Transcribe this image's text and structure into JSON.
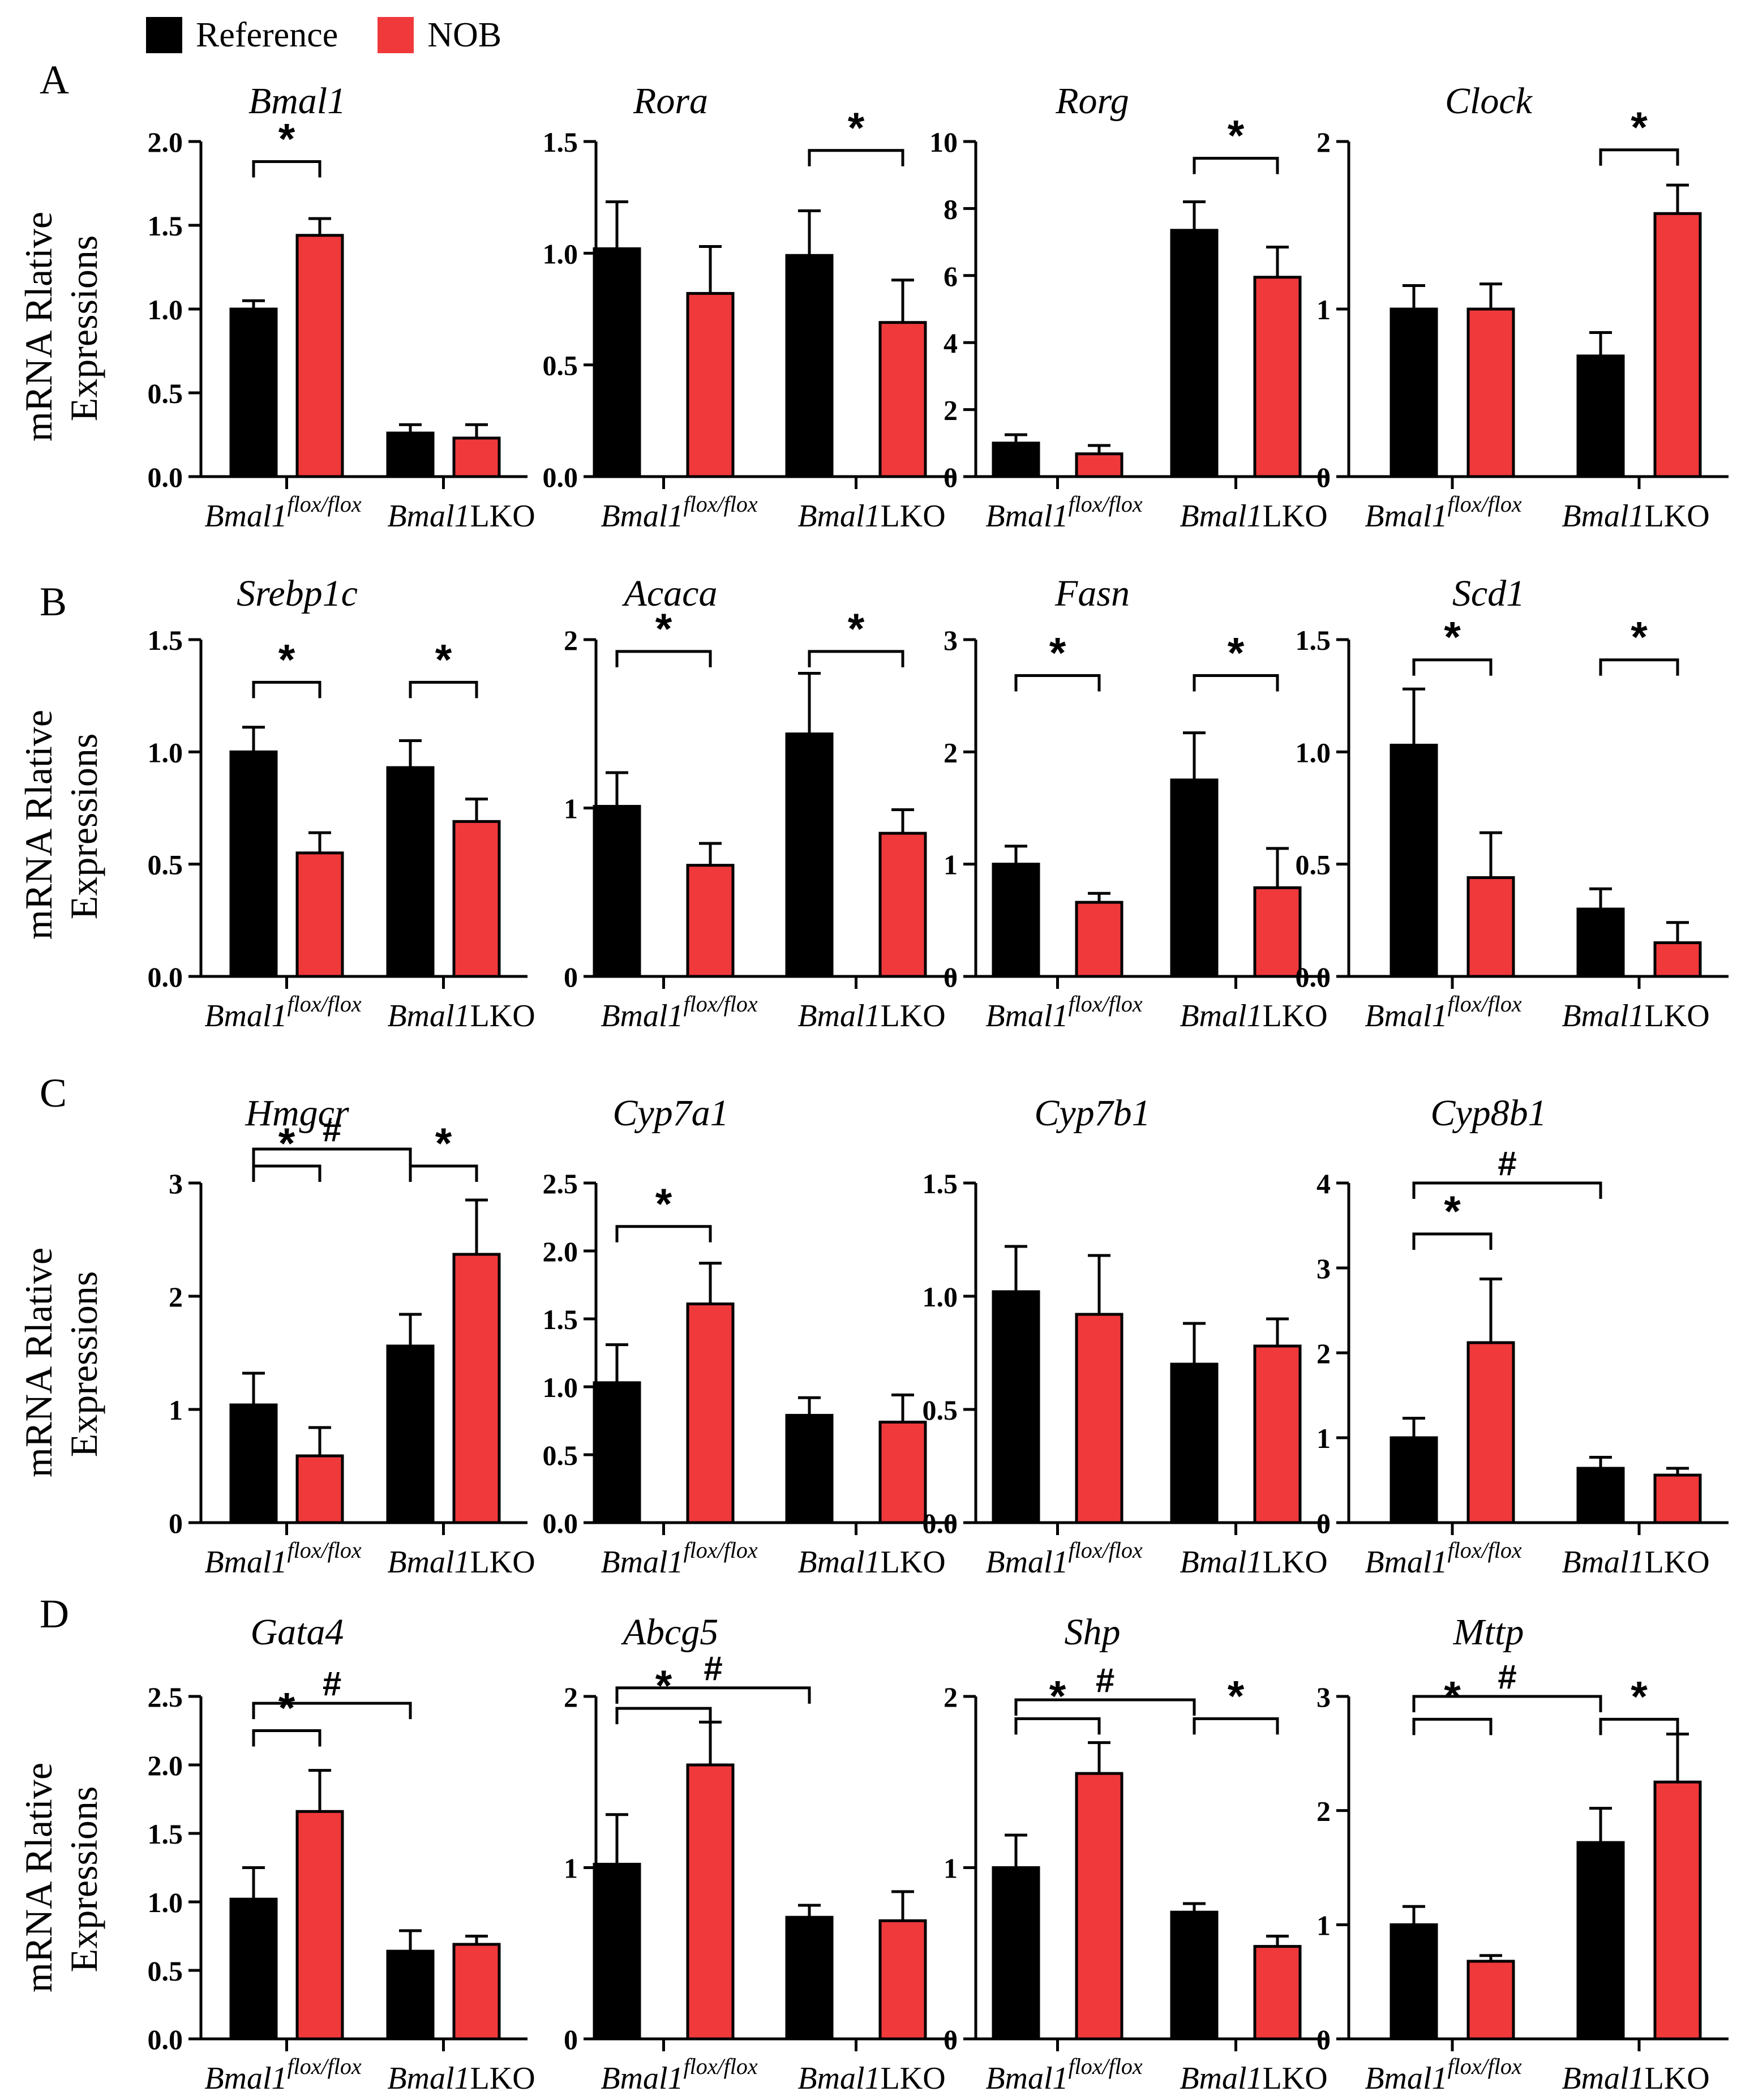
{
  "legend": {
    "items": [
      {
        "label": "Reference",
        "color": "#000000"
      },
      {
        "label": "NOB",
        "color": "#F0393B"
      }
    ]
  },
  "y_axis_label": {
    "line1": "mRNA Rlative",
    "line2": "Expressions"
  },
  "groups": {
    "g1_base": "Bmal1",
    "g1_sup": "flox/flox",
    "g2_base": "Bmal1",
    "g2_rest": "LKO"
  },
  "colors": {
    "reference": "#000000",
    "nob": "#F0393B"
  },
  "panels": [
    {
      "letter": "A",
      "charts": [
        {
          "type": "bar",
          "title": "Bmal1",
          "ylim": [
            0,
            2.0
          ],
          "ticks": [
            "0.0",
            "0.5",
            "1.0",
            "1.5",
            "2.0"
          ],
          "tickvals": [
            0,
            0.5,
            1.0,
            1.5,
            2.0
          ],
          "series": [
            {
              "name": "Reference",
              "values": [
                1.0,
                0.26
              ],
              "errors": [
                0.05,
                0.05
              ]
            },
            {
              "name": "NOB",
              "values": [
                1.44,
                0.23
              ],
              "errors": [
                0.1,
                0.08
              ]
            }
          ],
          "annotations": [
            {
              "type": "bracket",
              "label": "*",
              "from": "g1r",
              "to": "g1n",
              "level": 1.88
            }
          ]
        },
        {
          "type": "bar",
          "title": "Rora",
          "ylim": [
            0,
            1.5
          ],
          "ticks": [
            "0.0",
            "0.5",
            "1.0",
            "1.5"
          ],
          "tickvals": [
            0,
            0.5,
            1.0,
            1.5
          ],
          "series": [
            {
              "name": "Reference",
              "values": [
                1.02,
                0.99
              ],
              "errors": [
                0.21,
                0.2
              ]
            },
            {
              "name": "NOB",
              "values": [
                0.82,
                0.69
              ],
              "errors": [
                0.21,
                0.19
              ]
            }
          ],
          "annotations": [
            {
              "type": "bracket",
              "label": "*",
              "from": "g2r",
              "to": "g2n",
              "level": 1.46
            }
          ]
        },
        {
          "type": "bar",
          "title": "Rorg",
          "ylim": [
            0,
            10
          ],
          "ticks": [
            "0",
            "2",
            "4",
            "6",
            "8",
            "10"
          ],
          "tickvals": [
            0,
            2,
            4,
            6,
            8,
            10
          ],
          "series": [
            {
              "name": "Reference",
              "values": [
                1.0,
                7.35
              ],
              "errors": [
                0.25,
                0.85
              ]
            },
            {
              "name": "NOB",
              "values": [
                0.68,
                5.95
              ],
              "errors": [
                0.25,
                0.9
              ]
            }
          ],
          "annotations": [
            {
              "type": "bracket",
              "label": "*",
              "from": "g2r",
              "to": "g2n",
              "level": 9.5
            }
          ]
        },
        {
          "type": "bar",
          "title": "Clock",
          "ylim": [
            0,
            2
          ],
          "ticks": [
            "0",
            "1",
            "2"
          ],
          "tickvals": [
            0,
            1,
            2
          ],
          "series": [
            {
              "name": "Reference",
              "values": [
                1.0,
                0.72
              ],
              "errors": [
                0.14,
                0.14
              ]
            },
            {
              "name": "NOB",
              "values": [
                1.0,
                1.57
              ],
              "errors": [
                0.15,
                0.17
              ]
            }
          ],
          "annotations": [
            {
              "type": "bracket",
              "label": "*",
              "from": "g2r",
              "to": "g2n",
              "level": 1.95
            }
          ]
        }
      ]
    },
    {
      "letter": "B",
      "charts": [
        {
          "type": "bar",
          "title": "Srebp1c",
          "ylim": [
            0,
            1.5
          ],
          "ticks": [
            "0.0",
            "0.5",
            "1.0",
            "1.5"
          ],
          "tickvals": [
            0,
            0.5,
            1.0,
            1.5
          ],
          "series": [
            {
              "name": "Reference",
              "values": [
                1.0,
                0.93
              ],
              "errors": [
                0.11,
                0.12
              ]
            },
            {
              "name": "NOB",
              "values": [
                0.55,
                0.69
              ],
              "errors": [
                0.09,
                0.1
              ]
            }
          ],
          "annotations": [
            {
              "type": "bracket",
              "label": "*",
              "from": "g1r",
              "to": "g1n",
              "level": 1.31
            },
            {
              "type": "bracket",
              "label": "*",
              "from": "g2r",
              "to": "g2n",
              "level": 1.31
            }
          ]
        },
        {
          "type": "bar",
          "title": "Acaca",
          "ylim": [
            0,
            2
          ],
          "ticks": [
            "0",
            "1",
            "2"
          ],
          "tickvals": [
            0,
            1,
            2
          ],
          "series": [
            {
              "name": "Reference",
              "values": [
                1.01,
                1.44
              ],
              "errors": [
                0.2,
                0.36
              ]
            },
            {
              "name": "NOB",
              "values": [
                0.66,
                0.85
              ],
              "errors": [
                0.13,
                0.14
              ]
            }
          ],
          "annotations": [
            {
              "type": "bracket",
              "label": "*",
              "from": "g1r",
              "to": "g1n",
              "level": 1.93
            },
            {
              "type": "bracket",
              "label": "*",
              "from": "g2r",
              "to": "g2n",
              "level": 1.93
            }
          ]
        },
        {
          "type": "bar",
          "title": "Fasn",
          "ylim": [
            0,
            3
          ],
          "ticks": [
            "0",
            "1",
            "2",
            "3"
          ],
          "tickvals": [
            0,
            1,
            2,
            3
          ],
          "series": [
            {
              "name": "Reference",
              "values": [
                1.0,
                1.75
              ],
              "errors": [
                0.16,
                0.42
              ]
            },
            {
              "name": "NOB",
              "values": [
                0.66,
                0.79
              ],
              "errors": [
                0.08,
                0.35
              ]
            }
          ],
          "annotations": [
            {
              "type": "bracket",
              "label": "*",
              "from": "g1r",
              "to": "g1n",
              "level": 2.68
            },
            {
              "type": "bracket",
              "label": "*",
              "from": "g2r",
              "to": "g2n",
              "level": 2.68
            }
          ]
        },
        {
          "type": "bar",
          "title": "Scd1",
          "ylim": [
            0,
            1.5
          ],
          "ticks": [
            "0.0",
            "0.5",
            "1.0",
            "1.5"
          ],
          "tickvals": [
            0,
            0.5,
            1.0,
            1.5
          ],
          "series": [
            {
              "name": "Reference",
              "values": [
                1.03,
                0.3
              ],
              "errors": [
                0.25,
                0.09
              ]
            },
            {
              "name": "NOB",
              "values": [
                0.44,
                0.15
              ],
              "errors": [
                0.2,
                0.09
              ]
            }
          ],
          "annotations": [
            {
              "type": "bracket",
              "label": "*",
              "from": "g1r",
              "to": "g1n",
              "level": 1.41
            },
            {
              "type": "bracket",
              "label": "*",
              "from": "g2r",
              "to": "g2n",
              "level": 1.41
            }
          ]
        }
      ]
    },
    {
      "letter": "C",
      "charts": [
        {
          "type": "bar",
          "title": "Hmgcr",
          "ylim": [
            0,
            3
          ],
          "ticks": [
            "0",
            "1",
            "2",
            "3"
          ],
          "tickvals": [
            0,
            1,
            2,
            3
          ],
          "series": [
            {
              "name": "Reference",
              "values": [
                1.04,
                1.56
              ],
              "errors": [
                0.28,
                0.28
              ]
            },
            {
              "name": "NOB",
              "values": [
                0.59,
                2.37
              ],
              "errors": [
                0.25,
                0.48
              ]
            }
          ],
          "annotations": [
            {
              "type": "bracket",
              "label": "*",
              "from": "g1r",
              "to": "g1n",
              "level": 3.15
            },
            {
              "type": "bracket",
              "label": "*",
              "from": "g2r",
              "to": "g2n",
              "level": 3.15
            },
            {
              "type": "bracket",
              "label": "#",
              "from": "g1r",
              "to": "g2r",
              "level": 3.3
            }
          ]
        },
        {
          "type": "bar",
          "title": "Cyp7a1",
          "ylim": [
            0,
            2.5
          ],
          "ticks": [
            "0.0",
            "0.5",
            "1.0",
            "1.5",
            "2.0",
            "2.5"
          ],
          "tickvals": [
            0,
            0.5,
            1.0,
            1.5,
            2.0,
            2.5
          ],
          "series": [
            {
              "name": "Reference",
              "values": [
                1.03,
                0.79
              ],
              "errors": [
                0.28,
                0.13
              ]
            },
            {
              "name": "NOB",
              "values": [
                1.61,
                0.74
              ],
              "errors": [
                0.3,
                0.2
              ]
            }
          ],
          "annotations": [
            {
              "type": "bracket",
              "label": "*",
              "from": "g1r",
              "to": "g1n",
              "level": 2.18
            }
          ]
        },
        {
          "type": "bar",
          "title": "Cyp7b1",
          "ylim": [
            0,
            1.5
          ],
          "ticks": [
            "0.0",
            "0.5",
            "1.0",
            "1.5"
          ],
          "tickvals": [
            0,
            0.5,
            1.0,
            1.5
          ],
          "series": [
            {
              "name": "Reference",
              "values": [
                1.02,
                0.7
              ],
              "errors": [
                0.2,
                0.18
              ]
            },
            {
              "name": "NOB",
              "values": [
                0.92,
                0.78
              ],
              "errors": [
                0.26,
                0.12
              ]
            }
          ],
          "annotations": []
        },
        {
          "type": "bar",
          "title": "Cyp8b1",
          "ylim": [
            0,
            4
          ],
          "ticks": [
            "0",
            "1",
            "2",
            "3",
            "4"
          ],
          "tickvals": [
            0,
            1,
            2,
            3,
            4
          ],
          "series": [
            {
              "name": "Reference",
              "values": [
                1.0,
                0.64
              ],
              "errors": [
                0.23,
                0.13
              ]
            },
            {
              "name": "NOB",
              "values": [
                2.12,
                0.56
              ],
              "errors": [
                0.75,
                0.08
              ]
            }
          ],
          "annotations": [
            {
              "type": "bracket",
              "label": "*",
              "from": "g1r",
              "to": "g1n",
              "level": 3.4
            },
            {
              "type": "bracket",
              "label": "#",
              "from": "g1r",
              "to": "g2r",
              "level": 4.0
            }
          ]
        }
      ]
    },
    {
      "letter": "D",
      "charts": [
        {
          "type": "bar",
          "title": "Gata4",
          "ylim": [
            0,
            2.5
          ],
          "ticks": [
            "0.0",
            "0.5",
            "1.0",
            "1.5",
            "2.0",
            "2.5"
          ],
          "tickvals": [
            0,
            0.5,
            1.0,
            1.5,
            2.0,
            2.5
          ],
          "series": [
            {
              "name": "Reference",
              "values": [
                1.02,
                0.64
              ],
              "errors": [
                0.23,
                0.15
              ]
            },
            {
              "name": "NOB",
              "values": [
                1.66,
                0.69
              ],
              "errors": [
                0.3,
                0.06
              ]
            }
          ],
          "annotations": [
            {
              "type": "bracket",
              "label": "*",
              "from": "g1r",
              "to": "g1n",
              "level": 2.25
            },
            {
              "type": "bracket",
              "label": "#",
              "from": "g1r",
              "to": "g2r",
              "level": 2.45
            }
          ]
        },
        {
          "type": "bar",
          "title": "Abcg5",
          "ylim": [
            0,
            2
          ],
          "ticks": [
            "0",
            "1",
            "2"
          ],
          "tickvals": [
            0,
            1,
            2
          ],
          "series": [
            {
              "name": "Reference",
              "values": [
                1.02,
                0.71
              ],
              "errors": [
                0.29,
                0.07
              ]
            },
            {
              "name": "NOB",
              "values": [
                1.6,
                0.69
              ],
              "errors": [
                0.25,
                0.17
              ]
            }
          ],
          "annotations": [
            {
              "type": "bracket",
              "label": "*",
              "from": "g1r",
              "to": "g1n",
              "level": 1.93
            },
            {
              "type": "bracket",
              "label": "#",
              "from": "g1r",
              "to": "g2r",
              "level": 2.05
            }
          ]
        },
        {
          "type": "bar",
          "title": "Shp",
          "ylim": [
            0,
            2
          ],
          "ticks": [
            "0",
            "1",
            "2"
          ],
          "tickvals": [
            0,
            1,
            2
          ],
          "series": [
            {
              "name": "Reference",
              "values": [
                1.0,
                0.74
              ],
              "errors": [
                0.19,
                0.05
              ]
            },
            {
              "name": "NOB",
              "values": [
                1.55,
                0.54
              ],
              "errors": [
                0.18,
                0.06
              ]
            }
          ],
          "annotations": [
            {
              "type": "bracket",
              "label": "*",
              "from": "g1r",
              "to": "g1n",
              "level": 1.87
            },
            {
              "type": "bracket",
              "label": "*",
              "from": "g2r",
              "to": "g2n",
              "level": 1.87
            },
            {
              "type": "bracket",
              "label": "#",
              "from": "g1r",
              "to": "g2r",
              "level": 1.98
            }
          ]
        },
        {
          "type": "bar",
          "title": "Mttp",
          "ylim": [
            0,
            3
          ],
          "ticks": [
            "0",
            "1",
            "2",
            "3"
          ],
          "tickvals": [
            0,
            1,
            2,
            3
          ],
          "series": [
            {
              "name": "Reference",
              "values": [
                1.0,
                1.72
              ],
              "errors": [
                0.16,
                0.3
              ]
            },
            {
              "name": "NOB",
              "values": [
                0.68,
                2.25
              ],
              "errors": [
                0.05,
                0.42
              ]
            }
          ],
          "annotations": [
            {
              "type": "bracket",
              "label": "*",
              "from": "g1r",
              "to": "g1n",
              "level": 2.8
            },
            {
              "type": "bracket",
              "label": "*",
              "from": "g2r",
              "to": "g2n",
              "level": 2.8
            },
            {
              "type": "bracket",
              "label": "#",
              "from": "g1r",
              "to": "g2r",
              "level": 3.0
            }
          ]
        }
      ]
    }
  ]
}
